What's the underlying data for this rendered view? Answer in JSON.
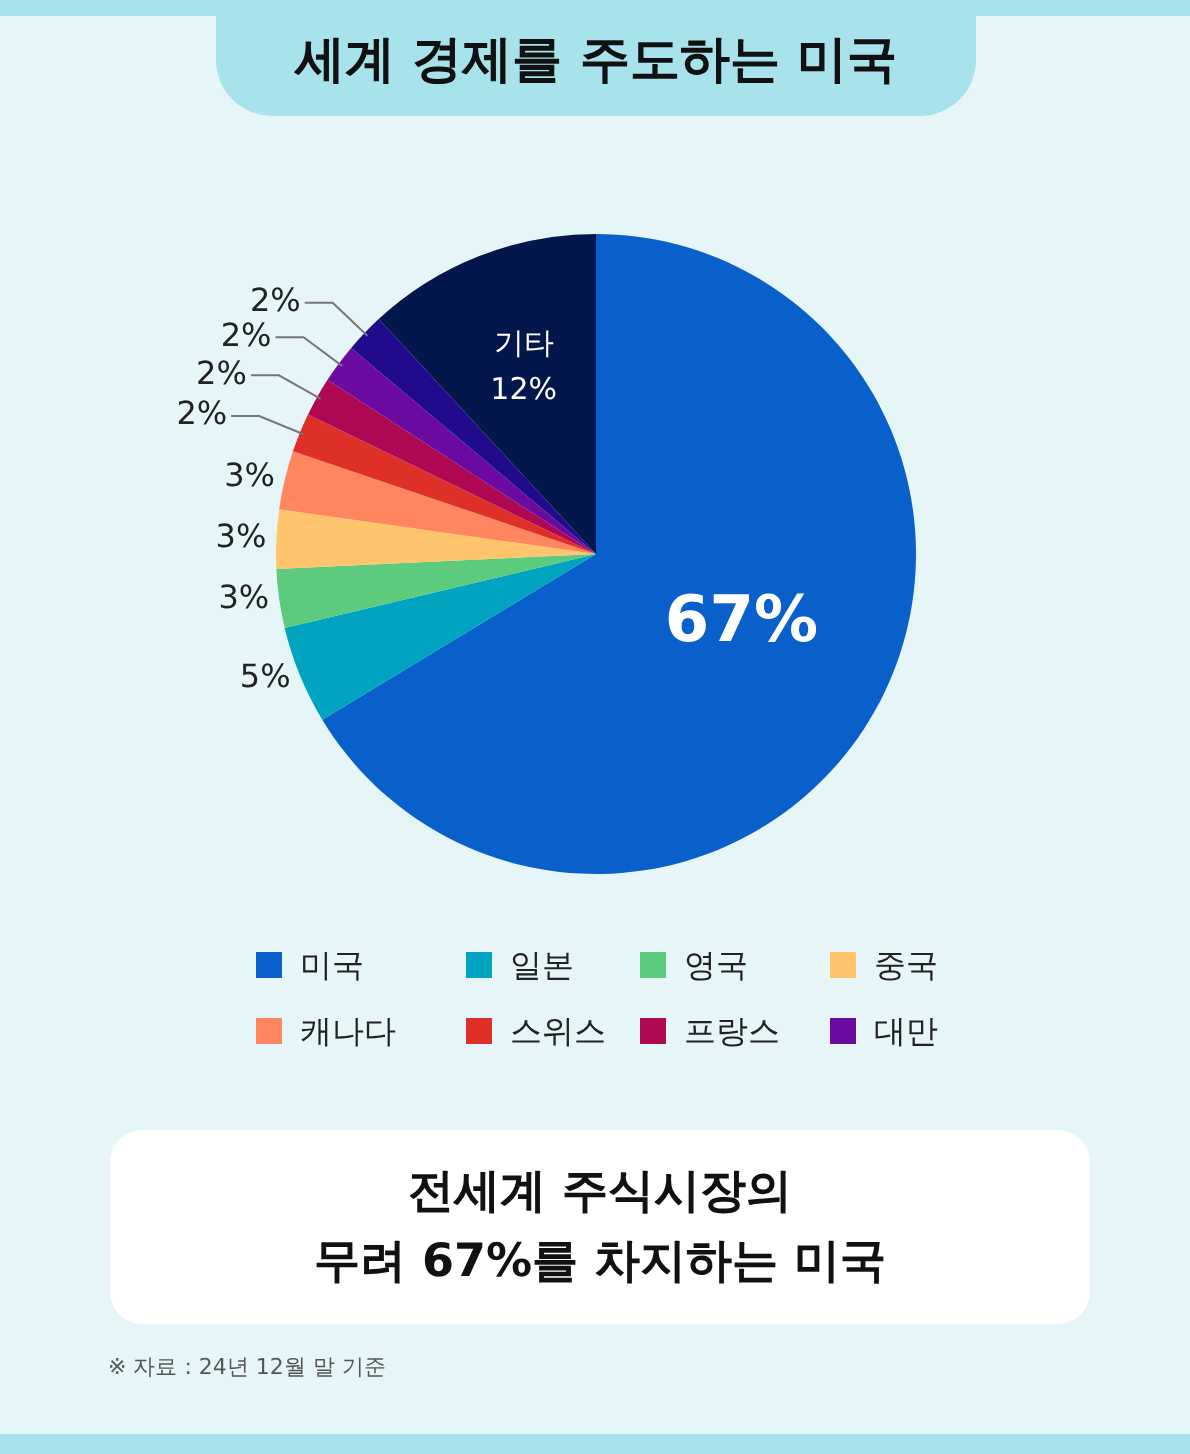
{
  "chart_data": {
    "type": "pie",
    "title": "세계 경제를 주도하는 미국",
    "subtitle": "전세계 주식시장의\n무려 67%를 차지하는 미국",
    "categories": [
      "미국",
      "일본",
      "영국",
      "중국",
      "캐나다",
      "스위스",
      "프랑스",
      "대만",
      null,
      "기타"
    ],
    "values": [
      67,
      5,
      3,
      3,
      3,
      2,
      2,
      2,
      2,
      12
    ],
    "value_labels": [
      "67%",
      "5%",
      "3%",
      "3%",
      "3%",
      "2%",
      "2%",
      "2%",
      "2%",
      "12%"
    ],
    "colors": [
      "#0a60ca",
      "#00a4c0",
      "#5ccb7e",
      "#ffc46c",
      "#ff865f",
      "#df2f29",
      "#ae0852",
      "#6a0aa0",
      "#210a8c",
      "#03174d"
    ],
    "legend": "bottom",
    "annotations": [
      "※ 자료 : 24년 12월 말 기준"
    ]
  }
}
